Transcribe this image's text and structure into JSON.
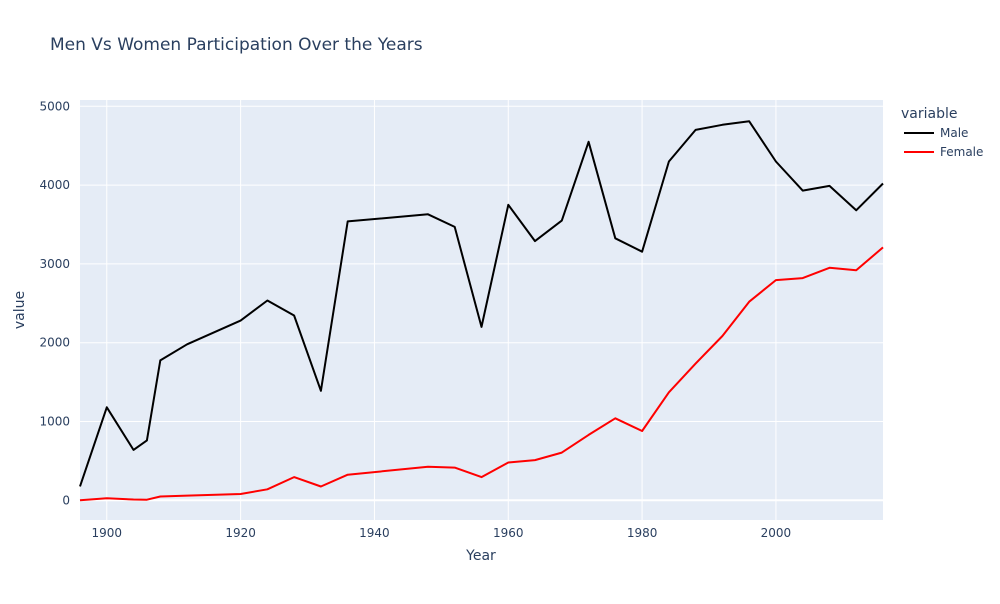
{
  "chart_data": {
    "type": "line",
    "title": "Men Vs Women Participation Over the Years",
    "xlabel": "Year",
    "ylabel": "value",
    "xlim": [
      1896,
      2016
    ],
    "ylim": [
      -250,
      5080
    ],
    "xticks": [
      1900,
      1920,
      1940,
      1960,
      1980,
      2000
    ],
    "yticks": [
      0,
      1000,
      2000,
      3000,
      4000,
      5000
    ],
    "grid": true,
    "legend": {
      "title": "variable",
      "position": "right"
    },
    "x": [
      1896,
      1900,
      1904,
      1906,
      1908,
      1912,
      1920,
      1924,
      1928,
      1932,
      1936,
      1948,
      1952,
      1956,
      1960,
      1964,
      1968,
      1972,
      1976,
      1980,
      1984,
      1988,
      1992,
      1996,
      2000,
      2004,
      2008,
      2012,
      2016
    ],
    "series": [
      {
        "name": "Male",
        "color": "#000000",
        "values": [
          176,
          1180,
          640,
          760,
          1775,
          1980,
          2280,
          2535,
          2345,
          1390,
          3540,
          3630,
          3470,
          2200,
          3750,
          3290,
          3550,
          4550,
          3325,
          3155,
          4300,
          4700,
          4765,
          4810,
          4300,
          3930,
          3990,
          3680,
          4020
        ]
      },
      {
        "name": "Female",
        "color": "#ff0000",
        "values": [
          0,
          25,
          10,
          8,
          48,
          60,
          80,
          140,
          295,
          175,
          325,
          425,
          415,
          295,
          480,
          510,
          605,
          830,
          1040,
          880,
          1370,
          1735,
          2085,
          2520,
          2795,
          2820,
          2950,
          2920,
          3210
        ]
      }
    ]
  }
}
